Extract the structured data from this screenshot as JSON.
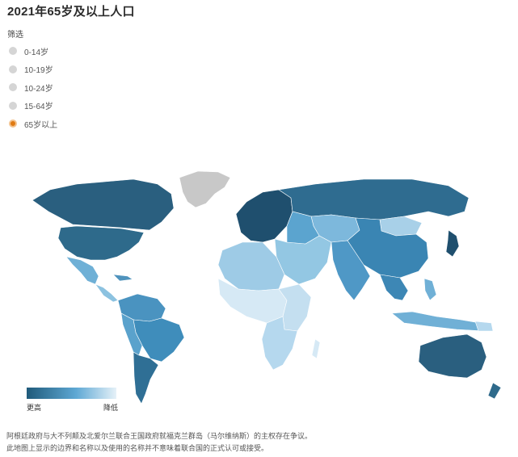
{
  "title": "2021年65岁及以上人口",
  "filter": {
    "label": "筛选",
    "options": [
      "0-14岁",
      "10-19岁",
      "10-24岁",
      "15-64岁",
      "65岁以上"
    ],
    "selected_index": 4
  },
  "legend": {
    "high_label": "更高",
    "low_label": "降低",
    "color_high": "#1f5a7a",
    "color_low": "#e6f1f8"
  },
  "notes": [
    "阿根廷政府与大不列颠及北爱尔兰联合王国政府就福克兰群岛（马尔维纳斯）的主权存在争议。",
    "此地图上显示的边界和名称以及使用的名称并不意味着联合国的正式认可或接受。"
  ]
}
